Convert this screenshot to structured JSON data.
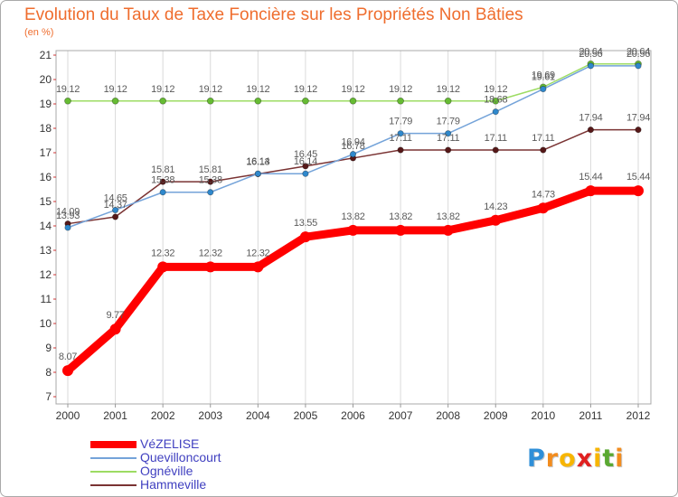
{
  "chart_data": {
    "type": "line",
    "title": "Evolution du Taux de Taxe Foncière sur les Propriétés Non Bâties",
    "ylabel": "(en %)",
    "xlabel": "",
    "x": [
      "2000",
      "2001",
      "2002",
      "2003",
      "2004",
      "2005",
      "2006",
      "2007",
      "2008",
      "2009",
      "2010",
      "2011",
      "2012"
    ],
    "ylim": [
      7,
      21
    ],
    "yticks": [
      7,
      8,
      9,
      10,
      11,
      12,
      13,
      14,
      15,
      16,
      17,
      18,
      19,
      20,
      21
    ],
    "grid": true,
    "legend_position": "bottom-left",
    "series": [
      {
        "name": "VéZELISE",
        "color": "#ff0000",
        "marker_color": "#ff0000",
        "values": [
          8.07,
          9.77,
          12.32,
          12.32,
          12.32,
          13.55,
          13.82,
          13.82,
          13.82,
          14.23,
          14.73,
          15.44,
          15.44
        ]
      },
      {
        "name": "Quevilloncourt",
        "color": "#74a3d9",
        "marker_color": "#2f88cc",
        "values": [
          13.93,
          14.65,
          15.38,
          15.38,
          16.14,
          16.14,
          16.94,
          17.79,
          17.79,
          18.68,
          19.61,
          20.56,
          20.56
        ]
      },
      {
        "name": "Ognéville",
        "color": "#9ddc63",
        "marker_color": "#66bb33",
        "values": [
          19.12,
          19.12,
          19.12,
          19.12,
          19.12,
          19.12,
          19.12,
          19.12,
          19.12,
          19.12,
          19.69,
          20.64,
          20.64
        ]
      },
      {
        "name": "Hammeville",
        "color": "#7a3333",
        "marker_color": "#561818",
        "values": [
          14.09,
          14.37,
          15.81,
          15.81,
          16.13,
          16.45,
          16.78,
          17.11,
          17.11,
          17.11,
          17.11,
          17.94,
          17.94
        ]
      }
    ]
  },
  "logo": {
    "text": "Proxiti",
    "letter_colors": [
      "#2f8fd8",
      "#f28c1e",
      "#f7b500",
      "#e02020",
      "#f7b500",
      "#5aa832",
      "#f28c1e"
    ]
  }
}
